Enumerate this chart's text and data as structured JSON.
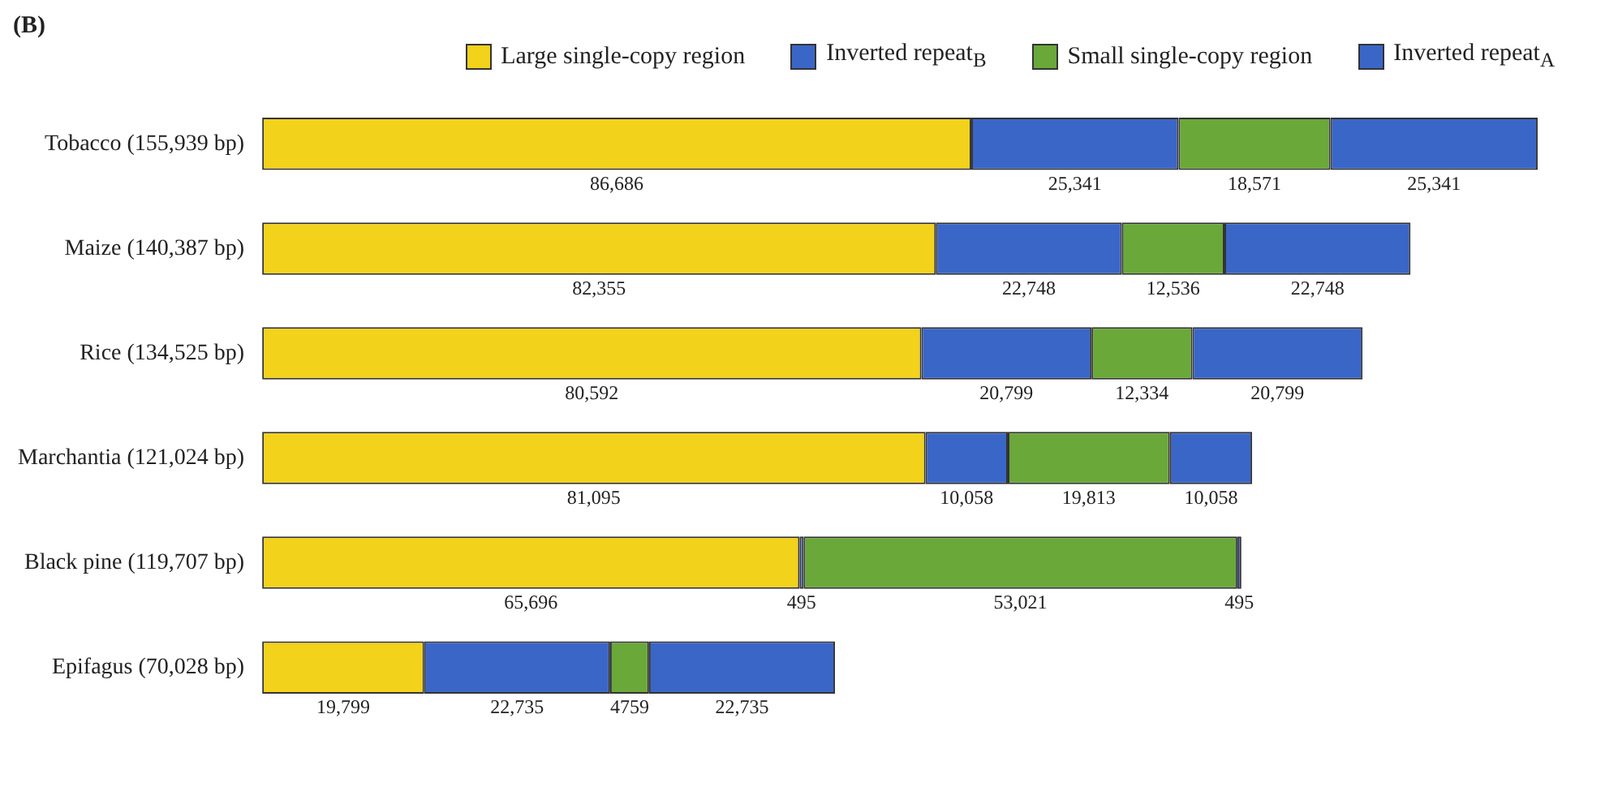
{
  "chart_data": {
    "type": "bar",
    "orientation": "horizontal",
    "stacked": true,
    "title": "(B)",
    "legend": "top",
    "categories": [
      "Tobacco (155,939 bp)",
      "Maize (140,387 bp)",
      "Rice (134,525 bp)",
      "Marchantia (121,024 bp)",
      "Black pine (119,707 bp)",
      "Epifagus (70,028 bp)"
    ],
    "series": [
      {
        "name": "Large single-copy region",
        "color": "#f2d21a",
        "values": [
          86686,
          82355,
          80592,
          81095,
          65696,
          19799
        ],
        "value_labels": [
          "86,686",
          "82,355",
          "80,592",
          "81,095",
          "65,696",
          "19,799"
        ]
      },
      {
        "name": "Inverted repeat$_{B}$",
        "color": "#3a66c8",
        "values": [
          25341,
          22748,
          20799,
          10058,
          495,
          22735
        ],
        "value_labels": [
          "25,341",
          "22,748",
          "20,799",
          "10,058",
          "495",
          "22,735"
        ]
      },
      {
        "name": "Small single-copy region",
        "color": "#6aa83a",
        "values": [
          18571,
          12536,
          12334,
          19813,
          53021,
          4759
        ],
        "value_labels": [
          "18,571",
          "12,536",
          "12,334",
          "19,813",
          "53,021",
          "4759"
        ]
      },
      {
        "name": "Inverted repeat$_{A}$",
        "color": "#3a66c8",
        "values": [
          25341,
          22748,
          20799,
          10058,
          495,
          22735
        ],
        "value_labels": [
          "25,341",
          "22,748",
          "20,799",
          "10,058",
          "495",
          "22,735"
        ]
      }
    ]
  }
}
